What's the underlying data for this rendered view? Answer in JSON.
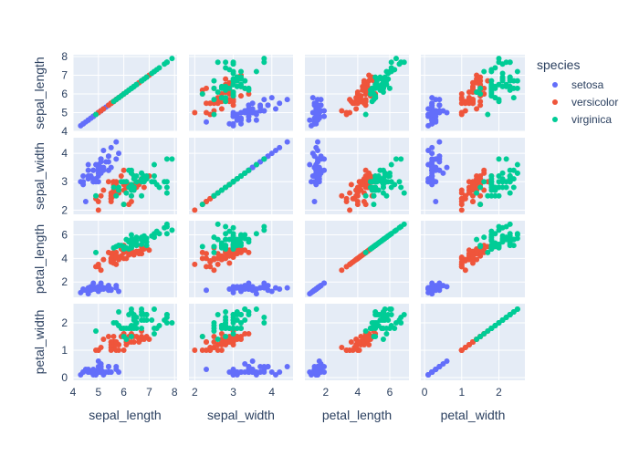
{
  "chart_data": {
    "type": "scatter-matrix",
    "dimensions": [
      "sepal_length",
      "sepal_width",
      "petal_length",
      "petal_width"
    ],
    "axis_ticks": {
      "sepal_length": [
        4,
        5,
        6,
        7,
        8
      ],
      "sepal_width": [
        2,
        3,
        4
      ],
      "petal_length": [
        2,
        4,
        6
      ],
      "petal_width": [
        0,
        1,
        2
      ]
    },
    "axis_ranges": {
      "sepal_length": [
        4.0,
        8.1
      ],
      "sepal_width": [
        1.85,
        4.55
      ],
      "petal_length": [
        0.7,
        7.2
      ],
      "petal_width": [
        -0.1,
        2.7
      ]
    },
    "diagonal_visible": true,
    "grid": true,
    "legend": {
      "title": "species",
      "position": "top-right",
      "items": [
        {
          "name": "setosa",
          "color": "#636efa"
        },
        {
          "name": "versicolor",
          "color": "#EF553B"
        },
        {
          "name": "virginica",
          "color": "#00cc96"
        }
      ]
    },
    "series": [
      {
        "name": "setosa",
        "color": "#636efa",
        "points": [
          [
            5.1,
            3.5,
            1.4,
            0.2
          ],
          [
            4.9,
            3.0,
            1.4,
            0.2
          ],
          [
            4.7,
            3.2,
            1.3,
            0.2
          ],
          [
            4.6,
            3.1,
            1.5,
            0.2
          ],
          [
            5.0,
            3.6,
            1.4,
            0.2
          ],
          [
            5.4,
            3.9,
            1.7,
            0.4
          ],
          [
            4.6,
            3.4,
            1.4,
            0.3
          ],
          [
            5.0,
            3.4,
            1.5,
            0.2
          ],
          [
            4.4,
            2.9,
            1.4,
            0.2
          ],
          [
            4.9,
            3.1,
            1.5,
            0.1
          ],
          [
            5.4,
            3.7,
            1.5,
            0.2
          ],
          [
            4.8,
            3.4,
            1.6,
            0.2
          ],
          [
            4.8,
            3.0,
            1.4,
            0.1
          ],
          [
            4.3,
            3.0,
            1.1,
            0.1
          ],
          [
            5.8,
            4.0,
            1.2,
            0.2
          ],
          [
            5.7,
            4.4,
            1.5,
            0.4
          ],
          [
            5.4,
            3.9,
            1.3,
            0.4
          ],
          [
            5.1,
            3.5,
            1.4,
            0.3
          ],
          [
            5.7,
            3.8,
            1.7,
            0.3
          ],
          [
            5.1,
            3.8,
            1.5,
            0.3
          ],
          [
            5.4,
            3.4,
            1.7,
            0.2
          ],
          [
            5.1,
            3.7,
            1.5,
            0.4
          ],
          [
            4.6,
            3.6,
            1.0,
            0.2
          ],
          [
            5.1,
            3.3,
            1.7,
            0.5
          ],
          [
            4.8,
            3.4,
            1.9,
            0.2
          ],
          [
            5.0,
            3.0,
            1.6,
            0.2
          ],
          [
            5.0,
            3.4,
            1.6,
            0.4
          ],
          [
            5.2,
            3.5,
            1.5,
            0.2
          ],
          [
            5.2,
            3.4,
            1.4,
            0.2
          ],
          [
            4.7,
            3.2,
            1.6,
            0.2
          ],
          [
            4.8,
            3.1,
            1.6,
            0.2
          ],
          [
            5.4,
            3.4,
            1.5,
            0.4
          ],
          [
            5.2,
            4.1,
            1.5,
            0.1
          ],
          [
            5.5,
            4.2,
            1.4,
            0.2
          ],
          [
            4.9,
            3.1,
            1.5,
            0.2
          ],
          [
            5.0,
            3.2,
            1.2,
            0.2
          ],
          [
            5.5,
            3.5,
            1.3,
            0.2
          ],
          [
            4.9,
            3.6,
            1.4,
            0.1
          ],
          [
            4.4,
            3.0,
            1.3,
            0.2
          ],
          [
            5.1,
            3.4,
            1.5,
            0.2
          ],
          [
            5.0,
            3.5,
            1.3,
            0.3
          ],
          [
            4.5,
            2.3,
            1.3,
            0.3
          ],
          [
            4.4,
            3.2,
            1.3,
            0.2
          ],
          [
            5.0,
            3.5,
            1.6,
            0.6
          ],
          [
            5.1,
            3.8,
            1.9,
            0.4
          ],
          [
            4.8,
            3.0,
            1.4,
            0.3
          ],
          [
            5.1,
            3.8,
            1.6,
            0.2
          ],
          [
            4.6,
            3.2,
            1.4,
            0.2
          ],
          [
            5.3,
            3.7,
            1.5,
            0.2
          ],
          [
            5.0,
            3.3,
            1.4,
            0.2
          ]
        ]
      },
      {
        "name": "versicolor",
        "color": "#EF553B",
        "points": [
          [
            7.0,
            3.2,
            4.7,
            1.4
          ],
          [
            6.4,
            3.2,
            4.5,
            1.5
          ],
          [
            6.9,
            3.1,
            4.9,
            1.5
          ],
          [
            5.5,
            2.3,
            4.0,
            1.3
          ],
          [
            6.5,
            2.8,
            4.6,
            1.5
          ],
          [
            5.7,
            2.8,
            4.5,
            1.3
          ],
          [
            6.3,
            3.3,
            4.7,
            1.6
          ],
          [
            4.9,
            2.4,
            3.3,
            1.0
          ],
          [
            6.6,
            2.9,
            4.6,
            1.3
          ],
          [
            5.2,
            2.7,
            3.9,
            1.4
          ],
          [
            5.0,
            2.0,
            3.5,
            1.0
          ],
          [
            5.9,
            3.0,
            4.2,
            1.5
          ],
          [
            6.0,
            2.2,
            4.0,
            1.0
          ],
          [
            6.1,
            2.9,
            4.7,
            1.4
          ],
          [
            5.6,
            2.9,
            3.6,
            1.3
          ],
          [
            6.7,
            3.1,
            4.4,
            1.4
          ],
          [
            5.6,
            3.0,
            4.5,
            1.5
          ],
          [
            5.8,
            2.7,
            4.1,
            1.0
          ],
          [
            6.2,
            2.2,
            4.5,
            1.5
          ],
          [
            5.6,
            2.5,
            3.9,
            1.1
          ],
          [
            5.9,
            3.2,
            4.8,
            1.8
          ],
          [
            6.1,
            2.8,
            4.0,
            1.3
          ],
          [
            6.3,
            2.5,
            4.9,
            1.5
          ],
          [
            6.1,
            2.8,
            4.7,
            1.2
          ],
          [
            6.4,
            2.9,
            4.3,
            1.3
          ],
          [
            6.6,
            3.0,
            4.4,
            1.4
          ],
          [
            6.8,
            2.8,
            4.8,
            1.4
          ],
          [
            6.7,
            3.0,
            5.0,
            1.7
          ],
          [
            6.0,
            2.9,
            4.5,
            1.5
          ],
          [
            5.7,
            2.6,
            3.5,
            1.0
          ],
          [
            5.5,
            2.4,
            3.8,
            1.1
          ],
          [
            5.5,
            2.4,
            3.7,
            1.0
          ],
          [
            5.8,
            2.7,
            3.9,
            1.2
          ],
          [
            6.0,
            2.7,
            5.1,
            1.6
          ],
          [
            5.4,
            3.0,
            4.5,
            1.5
          ],
          [
            6.0,
            3.4,
            4.5,
            1.6
          ],
          [
            6.7,
            3.1,
            4.7,
            1.5
          ],
          [
            6.3,
            2.3,
            4.4,
            1.3
          ],
          [
            5.6,
            3.0,
            4.1,
            1.3
          ],
          [
            5.5,
            2.5,
            4.0,
            1.3
          ],
          [
            5.5,
            2.6,
            4.4,
            1.2
          ],
          [
            6.1,
            3.0,
            4.6,
            1.4
          ],
          [
            5.8,
            2.6,
            4.0,
            1.2
          ],
          [
            5.0,
            2.3,
            3.3,
            1.0
          ],
          [
            5.6,
            2.7,
            4.2,
            1.3
          ],
          [
            5.7,
            3.0,
            4.2,
            1.2
          ],
          [
            5.7,
            2.9,
            4.2,
            1.3
          ],
          [
            6.2,
            2.9,
            4.3,
            1.3
          ],
          [
            5.1,
            2.5,
            3.0,
            1.1
          ],
          [
            5.7,
            2.8,
            4.1,
            1.3
          ]
        ]
      },
      {
        "name": "virginica",
        "color": "#00cc96",
        "points": [
          [
            6.3,
            3.3,
            6.0,
            2.5
          ],
          [
            5.8,
            2.7,
            5.1,
            1.9
          ],
          [
            7.1,
            3.0,
            5.9,
            2.1
          ],
          [
            6.3,
            2.9,
            5.6,
            1.8
          ],
          [
            6.5,
            3.0,
            5.8,
            2.2
          ],
          [
            7.6,
            3.0,
            6.6,
            2.1
          ],
          [
            4.9,
            2.5,
            4.5,
            1.7
          ],
          [
            7.3,
            2.9,
            6.3,
            1.8
          ],
          [
            6.7,
            2.5,
            5.8,
            1.8
          ],
          [
            7.2,
            3.6,
            6.1,
            2.5
          ],
          [
            6.5,
            3.2,
            5.1,
            2.0
          ],
          [
            6.4,
            2.7,
            5.3,
            1.9
          ],
          [
            6.8,
            3.0,
            5.5,
            2.1
          ],
          [
            5.7,
            2.5,
            5.0,
            2.0
          ],
          [
            5.8,
            2.8,
            5.1,
            2.4
          ],
          [
            6.4,
            3.2,
            5.3,
            2.3
          ],
          [
            6.5,
            3.0,
            5.5,
            1.8
          ],
          [
            7.7,
            3.8,
            6.7,
            2.2
          ],
          [
            7.7,
            2.6,
            6.9,
            2.3
          ],
          [
            6.0,
            2.2,
            5.0,
            1.5
          ],
          [
            6.9,
            3.2,
            5.7,
            2.3
          ],
          [
            5.6,
            2.8,
            4.9,
            2.0
          ],
          [
            7.7,
            2.8,
            6.7,
            2.0
          ],
          [
            6.3,
            2.7,
            4.9,
            1.8
          ],
          [
            6.7,
            3.3,
            5.7,
            2.1
          ],
          [
            7.2,
            3.2,
            6.0,
            1.8
          ],
          [
            6.2,
            2.8,
            4.8,
            1.8
          ],
          [
            6.1,
            3.0,
            4.9,
            1.8
          ],
          [
            6.4,
            2.8,
            5.6,
            2.1
          ],
          [
            7.2,
            3.0,
            5.8,
            1.6
          ],
          [
            7.4,
            2.8,
            6.1,
            1.9
          ],
          [
            7.9,
            3.8,
            6.4,
            2.0
          ],
          [
            6.4,
            2.8,
            5.6,
            2.2
          ],
          [
            6.3,
            2.8,
            5.1,
            1.5
          ],
          [
            6.1,
            2.6,
            5.6,
            1.4
          ],
          [
            7.7,
            3.0,
            6.1,
            2.3
          ],
          [
            6.3,
            3.4,
            5.6,
            2.4
          ],
          [
            6.4,
            3.1,
            5.5,
            1.8
          ],
          [
            6.0,
            3.0,
            4.8,
            1.8
          ],
          [
            6.9,
            3.1,
            5.4,
            2.1
          ],
          [
            6.7,
            3.1,
            5.6,
            2.4
          ],
          [
            6.9,
            3.1,
            5.1,
            2.3
          ],
          [
            5.8,
            2.7,
            5.1,
            1.9
          ],
          [
            6.8,
            3.2,
            5.9,
            2.3
          ],
          [
            6.7,
            3.3,
            5.7,
            2.5
          ],
          [
            6.7,
            3.0,
            5.2,
            2.3
          ],
          [
            6.3,
            2.5,
            5.0,
            1.9
          ],
          [
            6.5,
            3.0,
            5.2,
            2.0
          ],
          [
            6.2,
            3.4,
            5.4,
            2.3
          ],
          [
            5.9,
            3.0,
            5.1,
            1.8
          ]
        ]
      }
    ]
  }
}
